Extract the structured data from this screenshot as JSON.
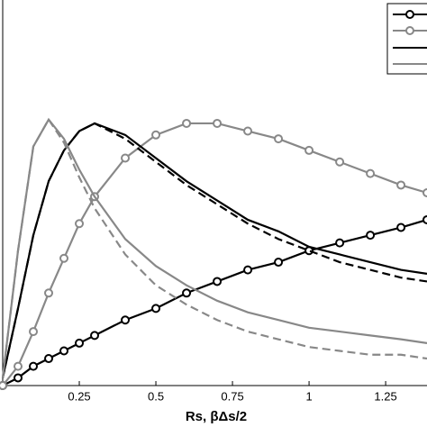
{
  "chart_data": {
    "type": "line",
    "x_label": "Rs,  βΔs/2",
    "x": [
      0,
      0.05,
      0.1,
      0.15,
      0.2,
      0.25,
      0.3,
      0.4,
      0.5,
      0.6,
      0.7,
      0.8,
      0.9,
      1.0,
      1.1,
      1.2,
      1.3,
      1.385
    ],
    "xlim": [
      0,
      1.385
    ],
    "xticks": [
      0.25,
      0.5,
      0.75,
      1,
      1.25
    ],
    "ylim": [
      0,
      1
    ],
    "series": [
      {
        "color": "#000000",
        "style": "solid",
        "marker": "o",
        "values": [
          0.0,
          0.02,
          0.05,
          0.07,
          0.09,
          0.11,
          0.13,
          0.17,
          0.2,
          0.24,
          0.27,
          0.3,
          0.32,
          0.35,
          0.37,
          0.39,
          0.41,
          0.43
        ]
      },
      {
        "color": "#888888",
        "style": "solid",
        "marker": "o",
        "values": [
          0.0,
          0.05,
          0.14,
          0.24,
          0.33,
          0.42,
          0.49,
          0.59,
          0.65,
          0.68,
          0.68,
          0.66,
          0.64,
          0.61,
          0.58,
          0.55,
          0.52,
          0.5
        ]
      },
      {
        "color": "#000000",
        "style": "solid",
        "values": [
          0.02,
          0.2,
          0.39,
          0.53,
          0.61,
          0.66,
          0.68,
          0.65,
          0.59,
          0.53,
          0.48,
          0.43,
          0.4,
          0.36,
          0.34,
          0.32,
          0.3,
          0.29
        ]
      },
      {
        "color": "#000000",
        "style": "dashed",
        "values": [
          0.02,
          0.2,
          0.39,
          0.53,
          0.61,
          0.66,
          0.68,
          0.64,
          0.58,
          0.52,
          0.47,
          0.42,
          0.38,
          0.35,
          0.32,
          0.3,
          0.28,
          0.27
        ]
      },
      {
        "color": "#888888",
        "style": "solid",
        "values": [
          0.02,
          0.35,
          0.62,
          0.69,
          0.64,
          0.56,
          0.49,
          0.38,
          0.31,
          0.26,
          0.22,
          0.19,
          0.17,
          0.15,
          0.14,
          0.13,
          0.12,
          0.11
        ]
      },
      {
        "color": "#888888",
        "style": "dashed",
        "values": [
          0.02,
          0.35,
          0.62,
          0.69,
          0.63,
          0.54,
          0.46,
          0.34,
          0.26,
          0.21,
          0.17,
          0.14,
          0.12,
          0.1,
          0.09,
          0.08,
          0.08,
          0.07
        ]
      }
    ]
  }
}
